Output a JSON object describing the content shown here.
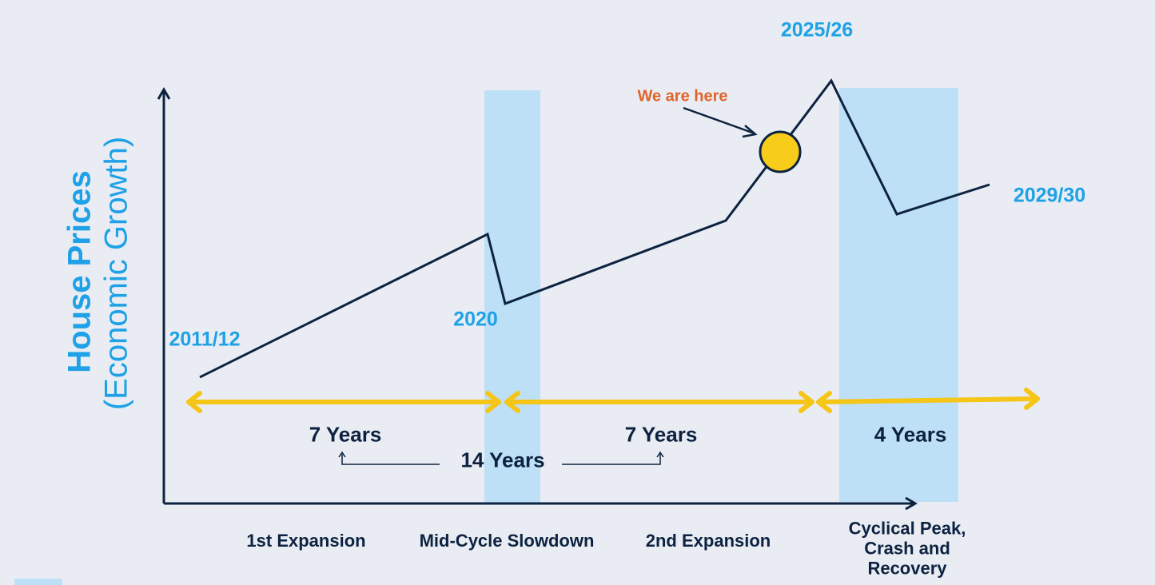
{
  "y_axis": {
    "title": "House Prices",
    "subtitle": "(Economic Growth)"
  },
  "points": [
    "2011/12",
    "2020",
    "2025/26",
    "2029/30"
  ],
  "annotation": "We are here",
  "durations": [
    "7 Years",
    "7 Years",
    "4 Years",
    "14 Years"
  ],
  "phases": [
    "1st Expansion",
    "Mid-Cycle Slowdown",
    "2nd Expansion",
    "Cyclical Peak, Crash and Recovery"
  ]
}
